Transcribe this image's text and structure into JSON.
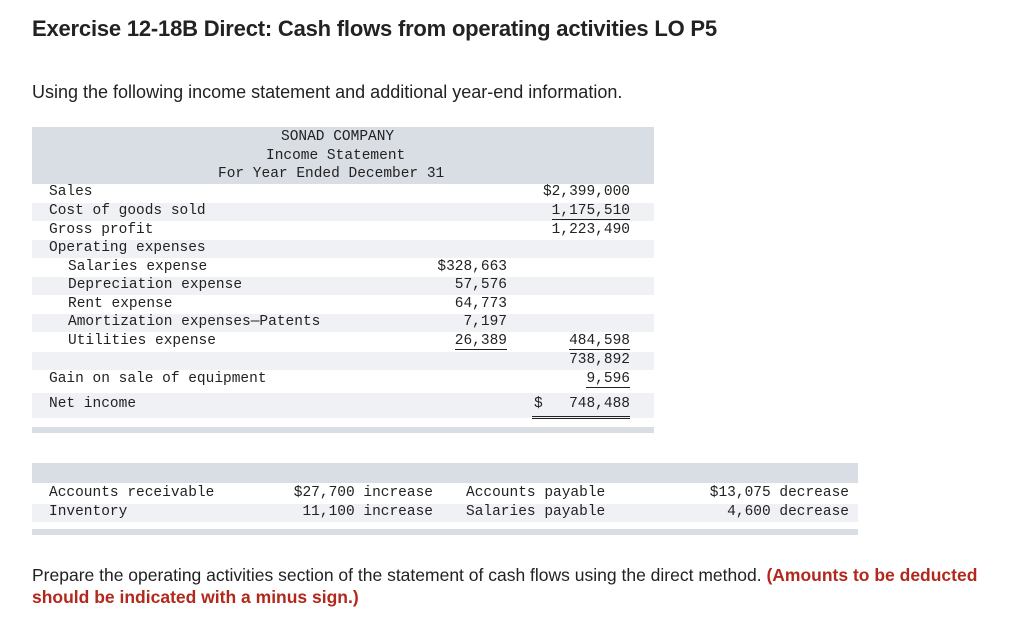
{
  "title": "Exercise 12-18B Direct: Cash flows from operating activities LO P5",
  "intro": "Using the following income statement and additional year-end information.",
  "income_statement": {
    "company": "SONAD COMPANY",
    "name": "Income Statement",
    "period": "For Year Ended December 31",
    "sales": {
      "label": "Sales",
      "amount": "$2,399,000"
    },
    "cogs": {
      "label": "Cost of goods sold",
      "amount": "1,175,510"
    },
    "gross_profit": {
      "label": "Gross profit",
      "amount": "1,223,490"
    },
    "opex_heading": "Operating expenses",
    "expenses": [
      {
        "label": "Salaries expense",
        "amount": "$328,663"
      },
      {
        "label": "Depreciation expense",
        "amount": "57,576"
      },
      {
        "label": "Rent expense",
        "amount": "64,773"
      },
      {
        "label": "Amortization expenses—Patents",
        "amount": "7,197"
      },
      {
        "label": "Utilities expense",
        "amount": "26,389"
      }
    ],
    "total_expenses": "484,598",
    "operating_income": "738,892",
    "gain": {
      "label": "Gain on sale of equipment",
      "amount": "9,596"
    },
    "net_income": {
      "label": "Net income",
      "dollar": "$",
      "amount": "748,488"
    }
  },
  "additional_info": [
    {
      "label": "Accounts receivable",
      "change": "$27,700 increase"
    },
    {
      "label": "Inventory",
      "change": "11,100 increase"
    },
    {
      "label": "Accounts payable",
      "change": "$13,075 decrease"
    },
    {
      "label": "Salaries payable",
      "change": "4,600 decrease"
    }
  ],
  "prompt": {
    "text": "Prepare the operating activities section of the statement of cash flows using the direct method.",
    "note": "(Amounts to be deducted should be indicated with a minus sign.)"
  }
}
